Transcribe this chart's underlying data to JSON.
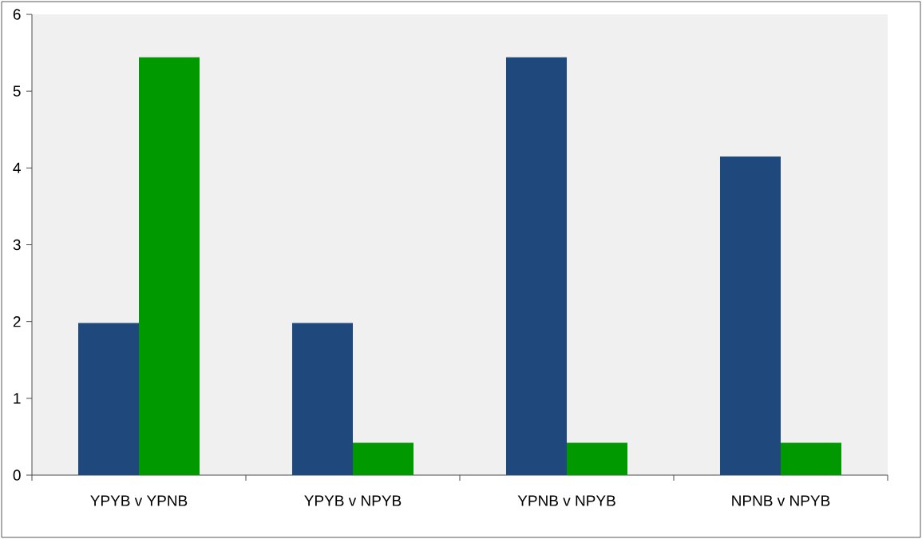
{
  "chart_data": {
    "type": "bar",
    "categories": [
      "YPYB v YPNB",
      "YPYB v NPYB",
      "YPNB v NPYB",
      "NPNB v NPYB"
    ],
    "series": [
      {
        "color": "#1f497d",
        "values": [
          1.98,
          1.98,
          5.44,
          4.15
        ]
      },
      {
        "color": "#009900",
        "values": [
          5.44,
          0.42,
          0.42,
          0.42
        ]
      }
    ],
    "ylim": [
      0,
      6
    ],
    "yticks": [
      0,
      1,
      2,
      3,
      4,
      5,
      6
    ]
  }
}
